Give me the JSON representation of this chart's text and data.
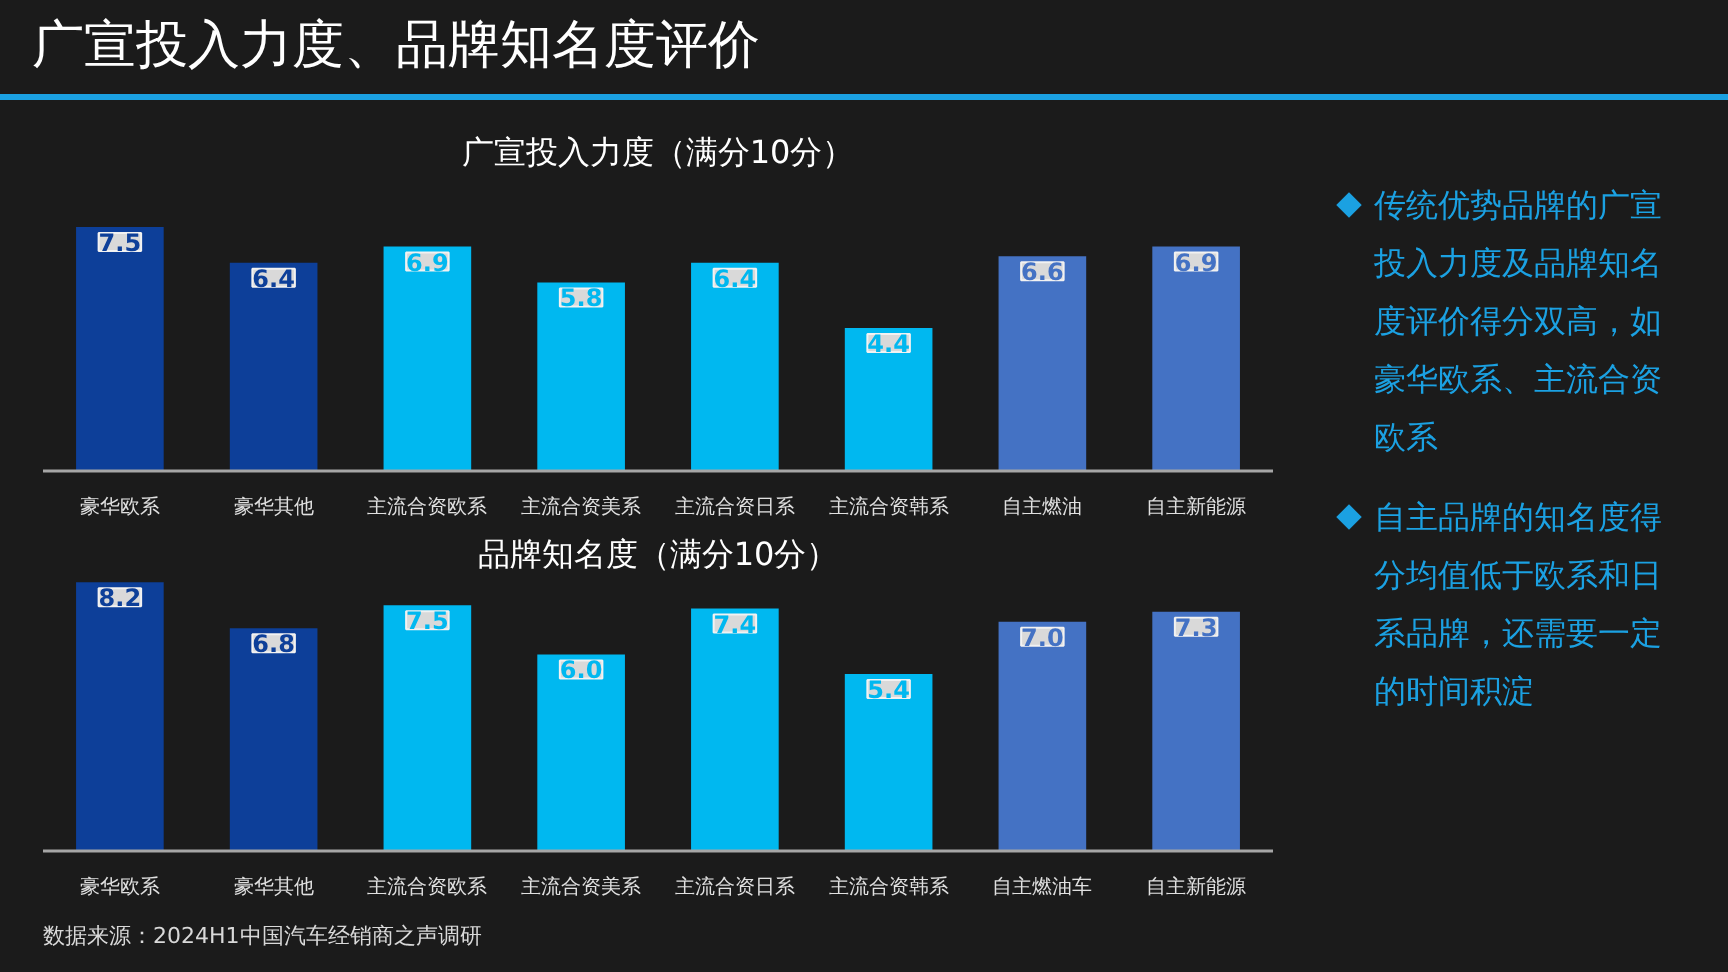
{
  "chart_data": [
    {
      "type": "bar",
      "title": "广宣投入力度、品牌知名度评价",
      "subtitle": "广宣投入力度（满分10分）",
      "categories": [
        "豪华欧系",
        "豪华其他",
        "主流合资欧系",
        "主流合资美系",
        "主流合资日系",
        "主流合资韩系",
        "自主燃油",
        "自主新能源"
      ],
      "values": [
        7.5,
        6.4,
        6.9,
        5.8,
        6.4,
        4.4,
        6.6,
        6.9
      ],
      "value_labels": [
        "7.5",
        "6.4",
        "6.9",
        "5.8",
        "6.4",
        "4.4",
        "6.6",
        "6.9"
      ],
      "colors": [
        "#0d3f99",
        "#0d3f99",
        "#00b8f0",
        "#00b8f0",
        "#00b8f0",
        "#00b8f0",
        "#4472c4",
        "#4472c4"
      ]
    },
    {
      "type": "bar",
      "title": "品牌知名度（满分10分）",
      "categories": [
        "豪华欧系",
        "豪华其他",
        "主流合资欧系",
        "主流合资美系",
        "主流合资日系",
        "主流合资韩系",
        "自主燃油车",
        "自主新能源"
      ],
      "values": [
        8.2,
        6.8,
        7.5,
        6.0,
        7.4,
        5.4,
        7.0,
        7.3
      ],
      "value_labels": [
        "8.2",
        "6.8",
        "7.5",
        "6.0",
        "7.4",
        "5.4",
        "7.0",
        "7.3"
      ],
      "colors": [
        "#0d3f99",
        "#0d3f99",
        "#00b8f0",
        "#00b8f0",
        "#00b8f0",
        "#00b8f0",
        "#4472c4",
        "#4472c4"
      ],
      "annotations": [
        "数据来源：2024H1中国汽车经销商之声调研"
      ]
    },
    {
      "type": "other",
      "annotations": [
        "传统优势品牌的广宣投入力度及品牌知名度评价得分双高，如豪华欧系、主流合资欧系",
        "自主品牌的知名度得分均值低于欧系和日系品牌，还需要一定的时间积淀"
      ]
    }
  ]
}
